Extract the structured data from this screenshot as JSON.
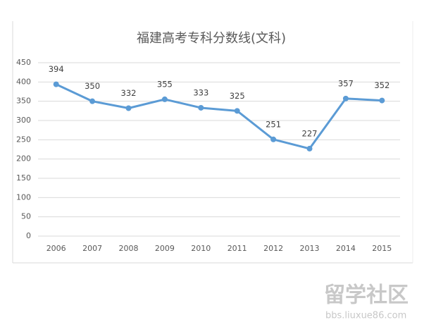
{
  "chart_data": {
    "type": "line",
    "title": "福建高考专科分数线(文科)",
    "categories": [
      "2006",
      "2007",
      "2008",
      "2009",
      "2010",
      "2011",
      "2012",
      "2013",
      "2014",
      "2015"
    ],
    "values": [
      394,
      350,
      332,
      355,
      333,
      325,
      251,
      227,
      357,
      352
    ],
    "color": "#5b9bd5",
    "ylim": [
      0,
      450
    ],
    "yticks": [
      0,
      50,
      100,
      150,
      200,
      250,
      300,
      350,
      400,
      450
    ],
    "grid": true,
    "data_labels": true
  },
  "watermark": {
    "title": "留学社区",
    "url": "bbs.liuxue86.com"
  }
}
